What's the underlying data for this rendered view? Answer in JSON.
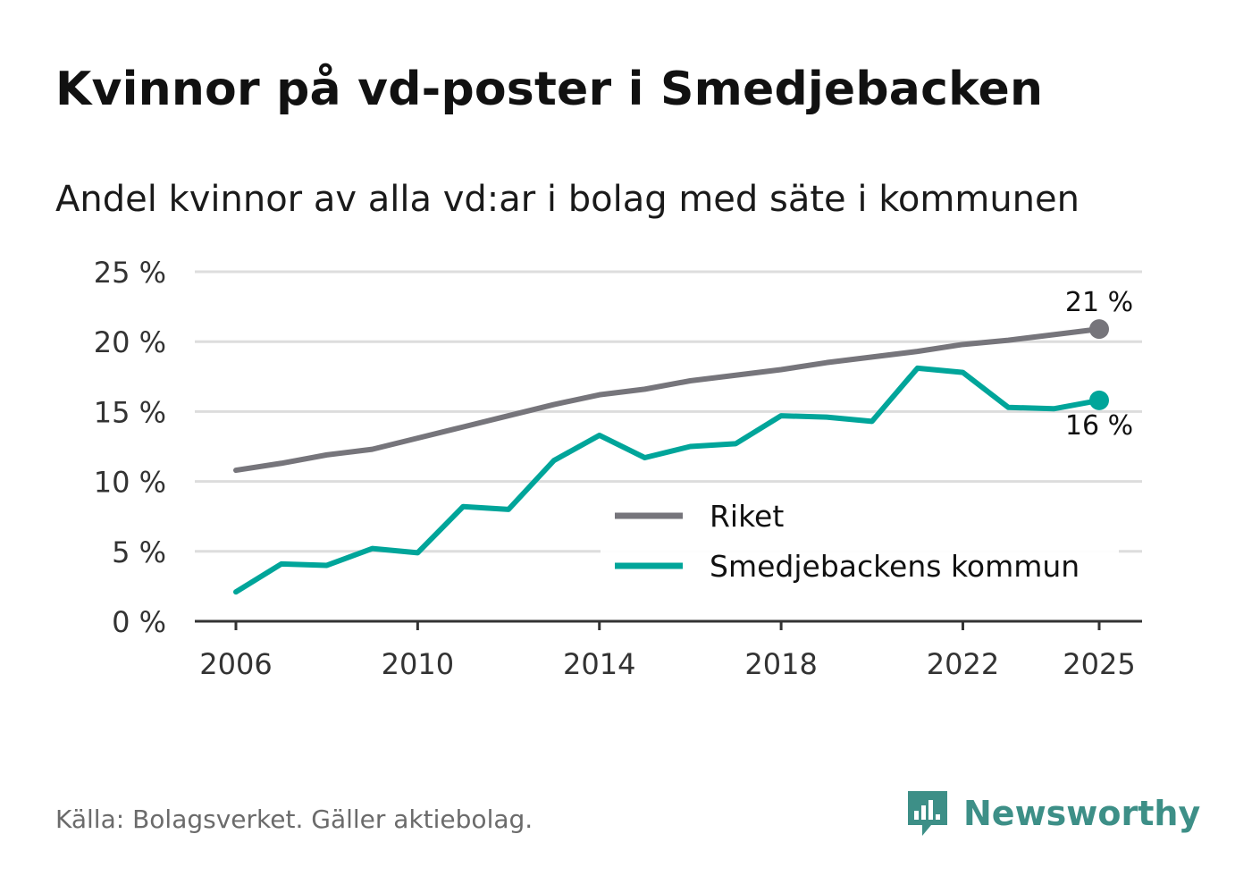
{
  "title": "Kvinnor på vd-poster i Smedjebacken",
  "subtitle": "Andel kvinnor av alla vd:ar i bolag med säte i kommunen",
  "source": "Källa: Bolagsverket. Gäller aktiebolag.",
  "brand": {
    "name": "Newsworthy",
    "icon": "newsworthy-logo-icon",
    "color": "#3d8f87"
  },
  "chart_data": {
    "type": "line",
    "title": "Kvinnor på vd-poster i Smedjebacken",
    "xlabel": "",
    "ylabel": "",
    "x": [
      2006,
      2007,
      2008,
      2009,
      2010,
      2011,
      2012,
      2013,
      2014,
      2015,
      2016,
      2017,
      2018,
      2019,
      2020,
      2021,
      2022,
      2023,
      2024,
      2025
    ],
    "xticks": [
      2006,
      2010,
      2014,
      2018,
      2022,
      2025
    ],
    "xtick_labels": [
      "2006",
      "2010",
      "2014",
      "2018",
      "2022",
      "2025"
    ],
    "ylim": [
      0,
      25
    ],
    "yticks": [
      0,
      5,
      10,
      15,
      20,
      25
    ],
    "ytick_labels": [
      "0 %",
      "5 %",
      "10 %",
      "15 %",
      "20 %",
      "25 %"
    ],
    "grid": true,
    "legend_position": "bottom-right",
    "series": [
      {
        "name": "Riket",
        "color": "#76757b",
        "values": [
          10.8,
          11.3,
          11.9,
          12.3,
          13.1,
          13.9,
          14.7,
          15.5,
          16.2,
          16.6,
          17.2,
          17.6,
          18.0,
          18.5,
          18.9,
          19.3,
          19.8,
          20.1,
          20.5,
          20.9
        ],
        "end_label": "21 %"
      },
      {
        "name": "Smedjebackens kommun",
        "color": "#00a59a",
        "values": [
          2.1,
          4.1,
          4.0,
          5.2,
          4.9,
          8.2,
          8.0,
          11.5,
          13.3,
          11.7,
          12.5,
          12.7,
          14.7,
          14.6,
          14.3,
          18.1,
          17.8,
          15.3,
          15.2,
          15.8
        ],
        "end_label": "16 %"
      }
    ]
  }
}
